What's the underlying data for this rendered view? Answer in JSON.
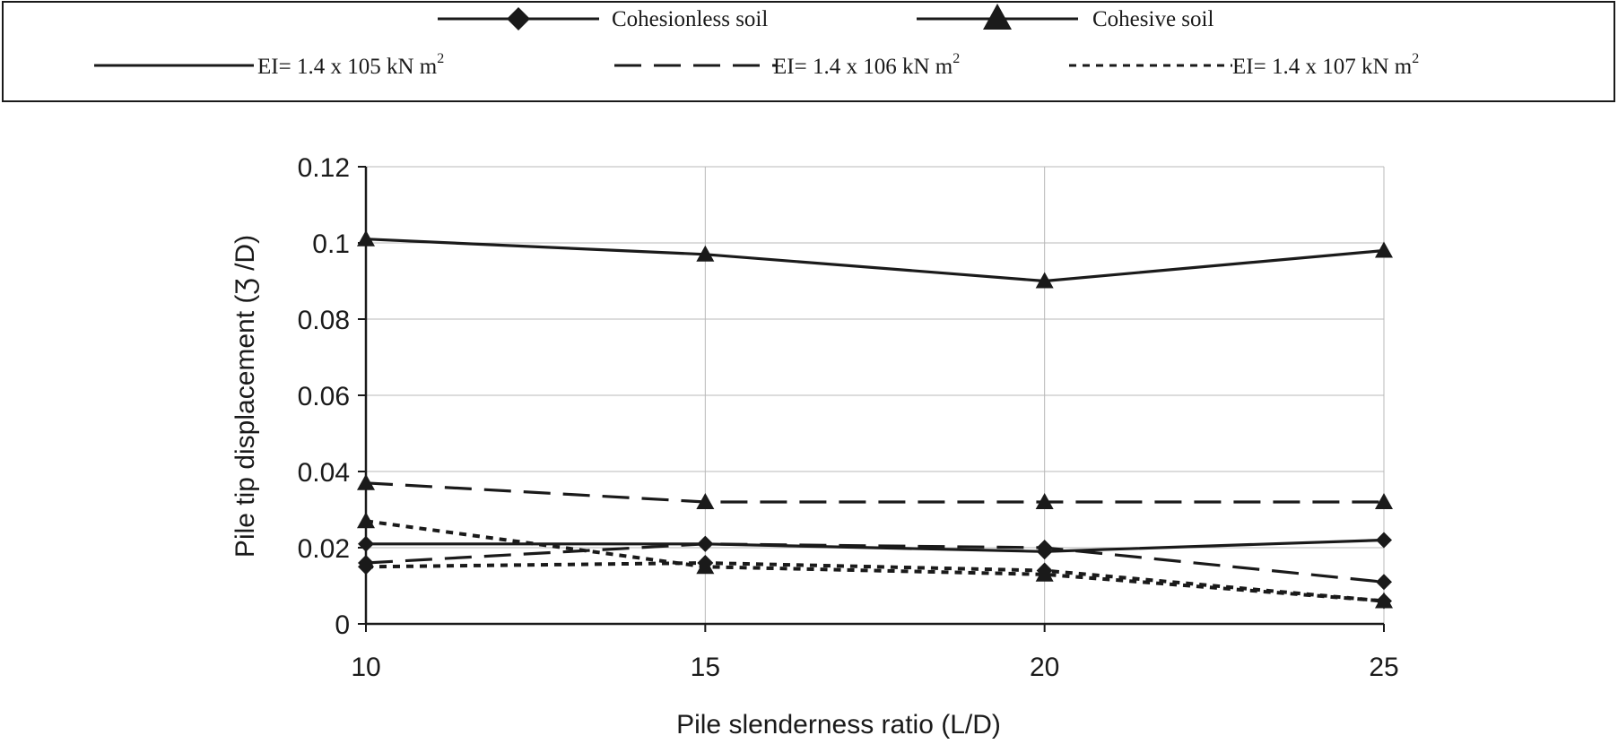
{
  "chart_data": {
    "type": "line",
    "xlabel": "Pile slenderness ratio (L/D)",
    "ylabel": "Pile tip displacement (Ʒ /D)",
    "x": [
      10,
      15,
      20,
      25
    ],
    "xlim": [
      10,
      25
    ],
    "ylim": [
      0,
      0.12
    ],
    "xticks": [
      "10",
      "15",
      "20",
      "25"
    ],
    "yticks": [
      "0",
      "0.02",
      "0.04",
      "0.06",
      "0.08",
      "0.1",
      "0.12"
    ],
    "grid": true,
    "legend_position": "top",
    "legend": {
      "markers": [
        {
          "label": "Cohesionless soil",
          "marker": "diamond"
        },
        {
          "label": "Cohesive soil",
          "marker": "triangle"
        }
      ],
      "lines": [
        {
          "label_base": "EI= 1.4 x 10",
          "exp": "5",
          "label_unit": " kN m",
          "unit_exp": "2",
          "style": "solid"
        },
        {
          "label_base": "EI= 1.4 x 10",
          "exp": "6",
          "label_unit": " kN m",
          "unit_exp": "2",
          "style": "dashed"
        },
        {
          "label_base": "EI= 1.4 x 10",
          "exp": "7",
          "label_unit": " kN m",
          "unit_exp": "2",
          "style": "dotted"
        }
      ]
    },
    "series": [
      {
        "soil": "cohesive",
        "ei": "EI= 1.4 x 105 kN m2",
        "style": "solid",
        "marker": "triangle",
        "values": [
          0.101,
          0.097,
          0.09,
          0.098
        ]
      },
      {
        "soil": "cohesive",
        "ei": "EI= 1.4 x 106 kN m2",
        "style": "dashed",
        "marker": "triangle",
        "values": [
          0.037,
          0.032,
          0.032,
          0.032
        ]
      },
      {
        "soil": "cohesive",
        "ei": "EI= 1.4 x 107 kN m2",
        "style": "dotted",
        "marker": "triangle",
        "values": [
          0.027,
          0.015,
          0.013,
          0.006
        ]
      },
      {
        "soil": "cohesionless",
        "ei": "EI= 1.4 x 105 kN m2",
        "style": "solid",
        "marker": "diamond",
        "values": [
          0.021,
          0.021,
          0.019,
          0.022
        ]
      },
      {
        "soil": "cohesionless",
        "ei": "EI= 1.4 x 106 kN m2",
        "style": "dashed",
        "marker": "diamond",
        "values": [
          0.016,
          0.021,
          0.02,
          0.011
        ]
      },
      {
        "soil": "cohesionless",
        "ei": "EI= 1.4 x 107 kN m2",
        "style": "dotted",
        "marker": "diamond",
        "values": [
          0.015,
          0.016,
          0.014,
          0.006
        ]
      }
    ]
  }
}
